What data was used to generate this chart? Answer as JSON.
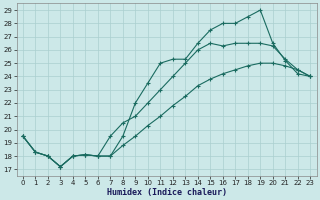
{
  "xlabel": "Humidex (Indice chaleur)",
  "bg_color": "#cce8e8",
  "grid_color": "#aacfcf",
  "line_color": "#1a6b60",
  "xlim": [
    -0.5,
    23.5
  ],
  "ylim": [
    16.5,
    29.5
  ],
  "xticks": [
    0,
    1,
    2,
    3,
    4,
    5,
    6,
    7,
    8,
    9,
    10,
    11,
    12,
    13,
    14,
    15,
    16,
    17,
    18,
    19,
    20,
    21,
    22,
    23
  ],
  "yticks": [
    17,
    18,
    19,
    20,
    21,
    22,
    23,
    24,
    25,
    26,
    27,
    28,
    29
  ],
  "line1_x": [
    0,
    1,
    2,
    3,
    4,
    5,
    6,
    7,
    8,
    9,
    10,
    11,
    12,
    13,
    14,
    15,
    16,
    17,
    18,
    19,
    20,
    21,
    22,
    23
  ],
  "line1_y": [
    19.5,
    18.3,
    18.0,
    17.2,
    18.0,
    18.1,
    18.0,
    18.0,
    19.5,
    22.0,
    23.5,
    25.0,
    25.3,
    25.3,
    26.5,
    27.5,
    28.0,
    28.0,
    28.5,
    29.0,
    26.5,
    25.2,
    24.2,
    24.0
  ],
  "line2_x": [
    0,
    1,
    2,
    3,
    4,
    5,
    6,
    7,
    8,
    9,
    10,
    11,
    12,
    13,
    14,
    15,
    16,
    17,
    18,
    19,
    20,
    21,
    22,
    23
  ],
  "line2_y": [
    19.5,
    18.3,
    18.0,
    17.2,
    18.0,
    18.1,
    18.0,
    19.5,
    20.5,
    21.0,
    22.0,
    23.0,
    24.0,
    25.0,
    26.0,
    26.5,
    26.3,
    26.5,
    26.5,
    26.5,
    26.3,
    25.3,
    24.5,
    24.0
  ],
  "line3_x": [
    0,
    1,
    2,
    3,
    4,
    5,
    6,
    7,
    8,
    9,
    10,
    11,
    12,
    13,
    14,
    15,
    16,
    17,
    18,
    19,
    20,
    21,
    22,
    23
  ],
  "line3_y": [
    19.5,
    18.3,
    18.0,
    17.2,
    18.0,
    18.1,
    18.0,
    18.0,
    18.8,
    19.5,
    20.3,
    21.0,
    21.8,
    22.5,
    23.3,
    23.8,
    24.2,
    24.5,
    24.8,
    25.0,
    25.0,
    24.8,
    24.5,
    24.0
  ]
}
